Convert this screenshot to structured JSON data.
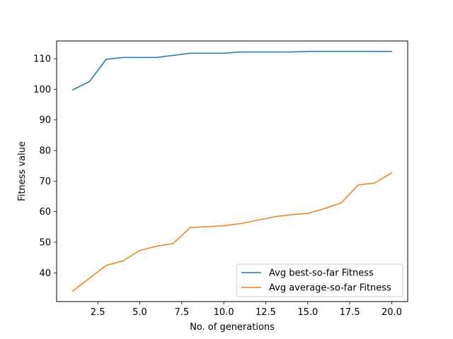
{
  "chart_data": {
    "type": "line",
    "title": "",
    "xlabel": "No. of generations",
    "ylabel": "Fitness value",
    "xlim": [
      0.05,
      20.95
    ],
    "ylim": [
      30.6,
      115.8
    ],
    "xticks": [
      2.5,
      5.0,
      7.5,
      10.0,
      12.5,
      15.0,
      17.5,
      20.0
    ],
    "xtick_labels": [
      "2.5",
      "5.0",
      "7.5",
      "10.0",
      "12.5",
      "15.0",
      "17.5",
      "20.0"
    ],
    "yticks": [
      40,
      50,
      60,
      70,
      80,
      90,
      100,
      110
    ],
    "ytick_labels": [
      "40",
      "50",
      "60",
      "70",
      "80",
      "90",
      "100",
      "110"
    ],
    "grid": false,
    "legend_position": "lower-right",
    "x": [
      1,
      2,
      3,
      4,
      5,
      6,
      7,
      8,
      9,
      10,
      11,
      12,
      13,
      14,
      15,
      16,
      17,
      18,
      19,
      20
    ],
    "series": [
      {
        "name": "Avg best-so-far Fitness",
        "color": "#1f77b4",
        "values": [
          99.8,
          102.5,
          109.8,
          110.4,
          110.4,
          110.4,
          111.1,
          111.8,
          111.8,
          111.8,
          112.2,
          112.2,
          112.2,
          112.2,
          112.4,
          112.4,
          112.4,
          112.4,
          112.4,
          112.4
        ]
      },
      {
        "name": "Avg average-so-far Fitness",
        "color": "#ff7f0e",
        "values": [
          34.0,
          38.2,
          42.4,
          43.9,
          47.3,
          48.7,
          49.6,
          54.8,
          55.1,
          55.4,
          56.1,
          57.2,
          58.3,
          59.0,
          59.4,
          61.0,
          62.9,
          68.7,
          69.4,
          72.7
        ]
      }
    ]
  }
}
